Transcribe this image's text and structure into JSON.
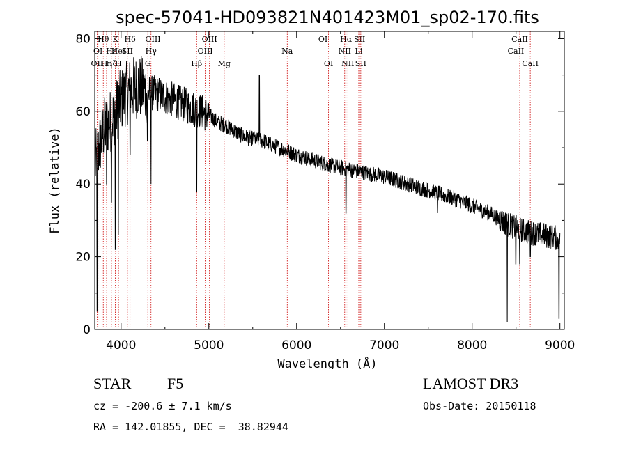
{
  "chart_data": {
    "type": "line",
    "title": "spec-57041-HD093821N401423M01_sp02-170.fits",
    "xlabel": "Wavelength (Å)",
    "ylabel": "Flux (relative)",
    "xlim": [
      3700,
      9050
    ],
    "ylim": [
      0,
      82
    ],
    "x_ticks": [
      4000,
      5000,
      6000,
      7000,
      8000,
      9000
    ],
    "y_ticks": [
      0,
      20,
      40,
      60,
      80
    ],
    "spectrum_continuum": [
      [
        3700,
        45
      ],
      [
        3800,
        55
      ],
      [
        3900,
        58
      ],
      [
        4000,
        63
      ],
      [
        4100,
        66
      ],
      [
        4200,
        67
      ],
      [
        4300,
        65
      ],
      [
        4400,
        65
      ],
      [
        4500,
        64
      ],
      [
        4600,
        63
      ],
      [
        4700,
        62
      ],
      [
        4800,
        61
      ],
      [
        4900,
        60
      ],
      [
        5000,
        59
      ],
      [
        5100,
        57
      ],
      [
        5200,
        56
      ],
      [
        5400,
        53
      ],
      [
        5600,
        52
      ],
      [
        5800,
        50
      ],
      [
        6000,
        48
      ],
      [
        6200,
        46.5
      ],
      [
        6400,
        45
      ],
      [
        6600,
        44
      ],
      [
        6800,
        43
      ],
      [
        7000,
        42
      ],
      [
        7200,
        40.5
      ],
      [
        7400,
        39
      ],
      [
        7600,
        37.5
      ],
      [
        7800,
        36
      ],
      [
        8000,
        34
      ],
      [
        8200,
        32
      ],
      [
        8400,
        29
      ],
      [
        8600,
        27
      ],
      [
        8800,
        26
      ],
      [
        9000,
        25
      ]
    ],
    "spectrum_features": [
      {
        "wavelength": 3727,
        "flux": 5
      },
      {
        "wavelength": 3835,
        "flux": 40
      },
      {
        "wavelength": 3889,
        "flux": 35
      },
      {
        "wavelength": 3934,
        "flux": 22
      },
      {
        "wavelength": 3969,
        "flux": 26
      },
      {
        "wavelength": 4102,
        "flux": 48
      },
      {
        "wavelength": 4300,
        "flux": 52
      },
      {
        "wavelength": 4341,
        "flux": 40
      },
      {
        "wavelength": 4861,
        "flux": 38
      },
      {
        "wavelength": 5576,
        "flux": 70
      },
      {
        "wavelength": 6563,
        "flux": 32
      },
      {
        "wavelength": 7605,
        "flux": 32
      },
      {
        "wavelength": 8400,
        "flux": 2
      },
      {
        "wavelength": 8498,
        "flux": 18
      },
      {
        "wavelength": 8542,
        "flux": 18
      },
      {
        "wavelength": 8662,
        "flux": 20
      },
      {
        "wavelength": 8990,
        "flux": 3
      }
    ],
    "line_markers": [
      {
        "label": "OII",
        "wavelength": 3727,
        "row": 3
      },
      {
        "label": "OI",
        "wavelength": 3737,
        "row": 2
      },
      {
        "label": "Hθ",
        "wavelength": 3797,
        "row": 1
      },
      {
        "label": "Hη",
        "wavelength": 3835,
        "row": 3
      },
      {
        "label": "Hε",
        "wavelength": 3889,
        "row": 2
      },
      {
        "label": "Hζ",
        "wavelength": 3889,
        "row": 3
      },
      {
        "label": "K",
        "wavelength": 3934,
        "row": 1
      },
      {
        "label": "HeI",
        "wavelength": 3970,
        "row": 2
      },
      {
        "label": "H",
        "wavelength": 3969,
        "row": 3
      },
      {
        "label": "Hδ",
        "wavelength": 4102,
        "row": 1
      },
      {
        "label": "SII",
        "wavelength": 4072,
        "row": 2
      },
      {
        "label": "OIII",
        "wavelength": 4363,
        "row": 1
      },
      {
        "label": "Hγ",
        "wavelength": 4341,
        "row": 2
      },
      {
        "label": "G",
        "wavelength": 4305,
        "row": 3
      },
      {
        "label": "OIII",
        "wavelength": 5007,
        "row": 1
      },
      {
        "label": "OIII",
        "wavelength": 4959,
        "row": 2
      },
      {
        "label": "Hβ",
        "wavelength": 4861,
        "row": 3
      },
      {
        "label": "Mg",
        "wavelength": 5175,
        "row": 3
      },
      {
        "label": "Na",
        "wavelength": 5893,
        "row": 2
      },
      {
        "label": "OI",
        "wavelength": 6300,
        "row": 1
      },
      {
        "label": "OI",
        "wavelength": 6364,
        "row": 3
      },
      {
        "label": "Hα",
        "wavelength": 6563,
        "row": 1
      },
      {
        "label": "NII",
        "wavelength": 6548,
        "row": 2
      },
      {
        "label": "NII",
        "wavelength": 6584,
        "row": 3
      },
      {
        "label": "SII",
        "wavelength": 6717,
        "row": 1
      },
      {
        "label": "Li",
        "wavelength": 6708,
        "row": 2
      },
      {
        "label": "SII",
        "wavelength": 6731,
        "row": 3
      },
      {
        "label": "CaII",
        "wavelength": 8542,
        "row": 1
      },
      {
        "label": "CaII",
        "wavelength": 8498,
        "row": 2
      },
      {
        "label": "CaII",
        "wavelength": 8662,
        "row": 3
      }
    ],
    "marker_color": "#cc0000",
    "line_color": "#000000"
  },
  "info": {
    "class": "STAR",
    "subclass": "F5",
    "survey": "LAMOST DR3",
    "cz": "cz = -200.6 ± 7.1 km/s",
    "obs_date": "Obs-Date: 20150118",
    "coords": "RA = 142.01855, DEC =  38.82944"
  }
}
